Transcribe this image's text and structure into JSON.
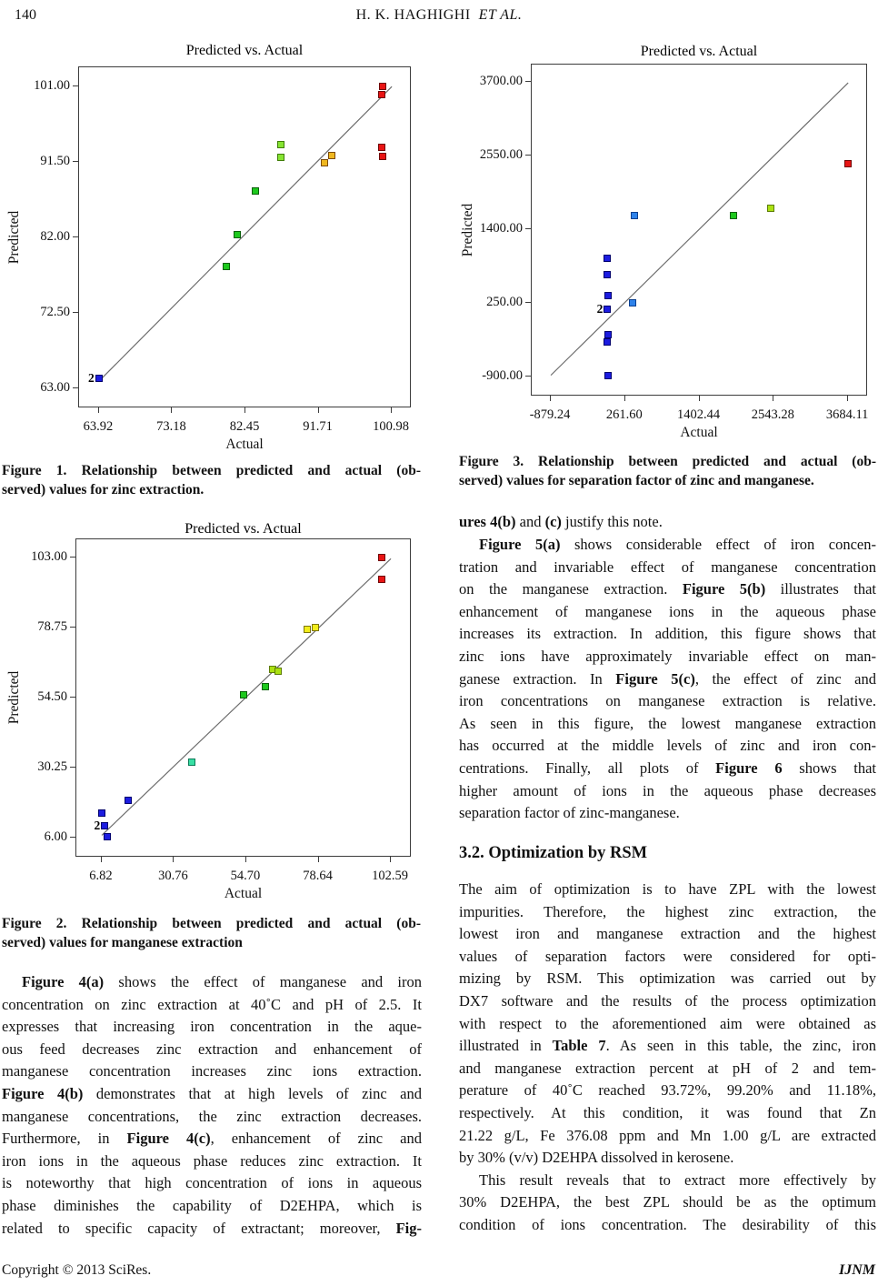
{
  "header": {
    "page_number": "140",
    "author": "H. K. HAGHIGHI",
    "etal": "ET AL."
  },
  "footer": {
    "copyright": "Copyright © 2013 SciRes.",
    "journal": "IJNM"
  },
  "palette": {
    "blue": [
      "#1c1ce0",
      "#00006e"
    ],
    "lightblue": [
      "#2e82ea",
      "#0b3f8f"
    ],
    "cyan": [
      "#38dfa4",
      "#0c7a58"
    ],
    "green": [
      "#1dc81d",
      "#075f07"
    ],
    "lightgreen": [
      "#86e432",
      "#3f7d08"
    ],
    "yellowgreen": [
      "#abe112",
      "#5d7c08"
    ],
    "yellow": [
      "#f2ed1c",
      "#7c7508"
    ],
    "orange": [
      "#efb71f",
      "#7c4a08"
    ],
    "red": [
      "#e81414",
      "#6e0505"
    ]
  },
  "chart_data": [
    {
      "type": "scatter",
      "title": "Predicted vs. Actual",
      "xlabel": "Actual",
      "ylabel": "Predicted",
      "xlim": [
        61.4,
        103.5
      ],
      "ylim": [
        60.5,
        103.4
      ],
      "grid": false,
      "xticks": [
        {
          "v": 63.92,
          "t": "63.92"
        },
        {
          "v": 73.18,
          "t": "73.18"
        },
        {
          "v": 82.45,
          "t": "82.45"
        },
        {
          "v": 91.71,
          "t": "91.71"
        },
        {
          "v": 100.98,
          "t": "100.98"
        }
      ],
      "yticks": [
        {
          "v": 63.0,
          "t": "63.00"
        },
        {
          "v": 72.5,
          "t": "72.50"
        },
        {
          "v": 82.0,
          "t": "82.00"
        },
        {
          "v": 91.5,
          "t": "91.50"
        },
        {
          "v": 101.0,
          "t": "101.00"
        }
      ],
      "line": {
        "x1": 63.92,
        "y1": 63.92,
        "x2": 100.98,
        "y2": 100.98
      },
      "points": [
        {
          "x": 63.9,
          "y": 64.3,
          "c": "blue",
          "t": "2"
        },
        {
          "x": 80.0,
          "y": 78.4,
          "c": "green"
        },
        {
          "x": 81.4,
          "y": 82.4,
          "c": "green"
        },
        {
          "x": 83.7,
          "y": 87.8,
          "c": "green"
        },
        {
          "x": 86.9,
          "y": 93.7,
          "c": "lightgreen"
        },
        {
          "x": 86.9,
          "y": 92.1,
          "c": "lightgreen"
        },
        {
          "x": 92.4,
          "y": 91.4,
          "c": "orange"
        },
        {
          "x": 93.4,
          "y": 92.3,
          "c": "orange"
        },
        {
          "x": 99.8,
          "y": 101.0,
          "c": "red"
        },
        {
          "x": 99.7,
          "y": 100.0,
          "c": "red"
        },
        {
          "x": 99.7,
          "y": 93.3,
          "c": "red"
        },
        {
          "x": 99.8,
          "y": 92.2,
          "c": "red"
        }
      ]
    },
    {
      "type": "scatter",
      "title": "Predicted vs. Actual",
      "xlabel": "Actual",
      "ylabel": "Predicted",
      "xlim": [
        -1.6,
        109.5
      ],
      "ylim": [
        -0.9,
        109.3
      ],
      "grid": false,
      "xticks": [
        {
          "v": 6.82,
          "t": "6.82"
        },
        {
          "v": 30.76,
          "t": "30.76"
        },
        {
          "v": 54.7,
          "t": "54.70"
        },
        {
          "v": 78.64,
          "t": "78.64"
        },
        {
          "v": 102.59,
          "t": "102.59"
        }
      ],
      "yticks": [
        {
          "v": 6.0,
          "t": "6.00"
        },
        {
          "v": 30.25,
          "t": "30.25"
        },
        {
          "v": 54.5,
          "t": "54.50"
        },
        {
          "v": 78.75,
          "t": "78.75"
        },
        {
          "v": 103.0,
          "t": "103.00"
        }
      ],
      "line": {
        "x1": 6.82,
        "y1": 6.82,
        "x2": 102.59,
        "y2": 102.59
      },
      "points": [
        {
          "x": 99.6,
          "y": 103.0,
          "c": "red"
        },
        {
          "x": 99.6,
          "y": 95.6,
          "c": "red"
        },
        {
          "x": 74.8,
          "y": 78.2,
          "c": "yellow"
        },
        {
          "x": 77.6,
          "y": 78.8,
          "c": "yellow"
        },
        {
          "x": 63.4,
          "y": 64.4,
          "c": "yellowgreen"
        },
        {
          "x": 65.2,
          "y": 63.7,
          "c": "yellowgreen"
        },
        {
          "x": 60.9,
          "y": 58.2,
          "c": "green"
        },
        {
          "x": 53.9,
          "y": 55.5,
          "c": "green"
        },
        {
          "x": 36.5,
          "y": 32.3,
          "c": "cyan"
        },
        {
          "x": 15.5,
          "y": 18.9,
          "c": "blue"
        },
        {
          "x": 6.8,
          "y": 14.4,
          "c": "blue"
        },
        {
          "x": 7.8,
          "y": 10.0,
          "c": "blue",
          "t": "2"
        },
        {
          "x": 8.5,
          "y": 6.2,
          "c": "blue"
        }
      ]
    },
    {
      "type": "scatter",
      "title": "Predicted vs. Actual",
      "xlabel": "Actual",
      "ylabel": "Predicted",
      "xlim": [
        -1173,
        3989
      ],
      "ylim": [
        -1211,
        3969
      ],
      "grid": false,
      "xticks": [
        {
          "v": -879.24,
          "t": "-879.24"
        },
        {
          "v": 261.6,
          "t": "261.60"
        },
        {
          "v": 1402.44,
          "t": "1402.44"
        },
        {
          "v": 2543.28,
          "t": "2543.28"
        },
        {
          "v": 3684.11,
          "t": "3684.11"
        }
      ],
      "yticks": [
        {
          "v": -900.0,
          "t": "-900.00"
        },
        {
          "v": 250.0,
          "t": "250.00"
        },
        {
          "v": 1400.0,
          "t": "1400.00"
        },
        {
          "v": 2550.0,
          "t": "2550.00"
        },
        {
          "v": 3700.0,
          "t": "3700.00"
        }
      ],
      "line": {
        "x1": -879.24,
        "y1": -879.24,
        "x2": 3684.11,
        "y2": 3684.11
      },
      "points": [
        {
          "x": 3680,
          "y": 2420,
          "c": "red"
        },
        {
          "x": 2490,
          "y": 1730,
          "c": "yellowgreen"
        },
        {
          "x": 1920,
          "y": 1610,
          "c": "green"
        },
        {
          "x": 400,
          "y": 1620,
          "c": "lightblue"
        },
        {
          "x": 380,
          "y": 250,
          "c": "lightblue"
        },
        {
          "x": -10,
          "y": 950,
          "c": "blue"
        },
        {
          "x": -10,
          "y": 690,
          "c": "blue"
        },
        {
          "x": 0,
          "y": 360,
          "c": "blue"
        },
        {
          "x": -10,
          "y": 150,
          "c": "blue",
          "t": "2"
        },
        {
          "x": -5,
          "y": -240,
          "c": "blue"
        },
        {
          "x": -10,
          "y": -360,
          "c": "blue"
        },
        {
          "x": -5,
          "y": -880,
          "c": "blue"
        }
      ]
    }
  ],
  "captions": {
    "fig1": [
      {
        "s": [
          [
            0,
            "Figure 1. Relationship between predicted and actual (ob-"
          ]
        ]
      },
      {
        "s": [
          [
            0,
            "served) values for zinc extraction."
          ]
        ],
        "l": 1
      }
    ],
    "fig2": [
      {
        "s": [
          [
            0,
            "Figure 2. Relationship between predicted and actual (ob-"
          ]
        ]
      },
      {
        "s": [
          [
            0,
            "served) values for manganese extraction"
          ]
        ],
        "l": 1
      }
    ],
    "fig3": [
      {
        "s": [
          [
            0,
            "Figure 3. Relationship between predicted and actual (ob-"
          ]
        ]
      },
      {
        "s": [
          [
            0,
            "served) values for separation factor of zinc and manganese."
          ]
        ],
        "l": 1
      }
    ]
  },
  "left_text": {
    "para1": [
      {
        "s": [
          [
            1,
            "Figure 4(a)"
          ],
          [
            0,
            " shows the effect of manganese and iron"
          ]
        ],
        "i": 1
      },
      {
        "s": [
          [
            0,
            "concentration on zinc extraction at 40˚C and pH of 2.5. It"
          ]
        ]
      },
      {
        "s": [
          [
            0,
            "expresses that increasing iron concentration in the aque-"
          ]
        ]
      },
      {
        "s": [
          [
            0,
            "ous feed decreases zinc extraction and enhancement of"
          ]
        ]
      },
      {
        "s": [
          [
            0,
            "manganese concentration increases zinc ions extraction."
          ]
        ]
      },
      {
        "s": [
          [
            1,
            "Figure 4(b)"
          ],
          [
            0,
            " demonstrates that at high levels of zinc and"
          ]
        ]
      },
      {
        "s": [
          [
            0,
            "manganese concentrations, the zinc extraction decreases."
          ]
        ]
      },
      {
        "s": [
          [
            0,
            "Furthermore, in "
          ],
          [
            1,
            "Figure 4(c)"
          ],
          [
            0,
            ", enhancement of zinc and"
          ]
        ]
      },
      {
        "s": [
          [
            0,
            "iron ions in the aqueous phase reduces zinc extraction. It"
          ]
        ]
      },
      {
        "s": [
          [
            0,
            "is noteworthy that high concentration of ions in aqueous"
          ]
        ]
      },
      {
        "s": [
          [
            0,
            "phase diminishes the capability of D2EHPA, which is"
          ]
        ]
      },
      {
        "s": [
          [
            0,
            "related to specific capacity of extractant; moreover, "
          ],
          [
            1,
            "Fig-"
          ]
        ]
      }
    ]
  },
  "right_text": {
    "cont_line": [
      {
        "s": [
          [
            1,
            "ures 4(b)"
          ],
          [
            0,
            " and "
          ],
          [
            1,
            "(c)"
          ],
          [
            0,
            " justify this note."
          ]
        ],
        "l": 1
      }
    ],
    "para_fig5": [
      {
        "s": [
          [
            1,
            "Figure 5(a)"
          ],
          [
            0,
            " shows considerable effect of iron concen-"
          ]
        ],
        "i": 1
      },
      {
        "s": [
          [
            0,
            "tration and invariable effect of manganese concentration"
          ]
        ]
      },
      {
        "s": [
          [
            0,
            "on the manganese extraction. "
          ],
          [
            1,
            "Figure 5(b)"
          ],
          [
            0,
            " illustrates that"
          ]
        ]
      },
      {
        "s": [
          [
            0,
            "enhancement of manganese ions in the aqueous phase"
          ]
        ]
      },
      {
        "s": [
          [
            0,
            "increases its extraction. In addition, this figure shows that"
          ]
        ]
      },
      {
        "s": [
          [
            0,
            "zinc ions have approximately invariable effect on man-"
          ]
        ]
      },
      {
        "s": [
          [
            0,
            "ganese extraction. In "
          ],
          [
            1,
            "Figure 5(c)"
          ],
          [
            0,
            ", the effect of zinc and"
          ]
        ]
      },
      {
        "s": [
          [
            0,
            "iron concentrations on manganese extraction is relative."
          ]
        ]
      },
      {
        "s": [
          [
            0,
            "As seen in this figure, the lowest manganese extraction"
          ]
        ]
      },
      {
        "s": [
          [
            0,
            "has occurred at the middle levels of zinc and iron con-"
          ]
        ]
      },
      {
        "s": [
          [
            0,
            "centrations. Finally, all plots of "
          ],
          [
            1,
            "Figure 6"
          ],
          [
            0,
            " shows that"
          ]
        ]
      },
      {
        "s": [
          [
            0,
            "higher amount of ions in the aqueous phase decreases"
          ]
        ]
      },
      {
        "s": [
          [
            0,
            "separation factor of zinc-manganese."
          ]
        ],
        "l": 1
      }
    ],
    "heading": "3.2. Optimization by RSM",
    "para_opt": [
      {
        "s": [
          [
            0,
            "The aim of optimization is to have ZPL with the lowest"
          ]
        ]
      },
      {
        "s": [
          [
            0,
            "impurities. Therefore, the highest zinc extraction, the"
          ]
        ]
      },
      {
        "s": [
          [
            0,
            "lowest iron and manganese extraction and the highest"
          ]
        ]
      },
      {
        "s": [
          [
            0,
            "values of separation factors were considered for opti-"
          ]
        ]
      },
      {
        "s": [
          [
            0,
            "mizing by RSM. This optimization was carried out by"
          ]
        ]
      },
      {
        "s": [
          [
            0,
            "DX7 software and the results of the process optimization"
          ]
        ]
      },
      {
        "s": [
          [
            0,
            "with respect to the aforementioned aim were obtained as"
          ]
        ]
      },
      {
        "s": [
          [
            0,
            "illustrated in "
          ],
          [
            1,
            "Table 7"
          ],
          [
            0,
            ". As seen in this table, the zinc, iron"
          ]
        ]
      },
      {
        "s": [
          [
            0,
            "and manganese extraction percent at pH of 2 and tem-"
          ]
        ]
      },
      {
        "s": [
          [
            0,
            "perature of 40˚C reached 93.72%, 99.20% and 11.18%,"
          ]
        ]
      },
      {
        "s": [
          [
            0,
            "respectively. At this condition, it was found that Zn"
          ]
        ]
      },
      {
        "s": [
          [
            0,
            "21.22 g/L, Fe 376.08 ppm and Mn 1.00 g/L are extracted"
          ]
        ]
      },
      {
        "s": [
          [
            0,
            "by 30% (v/v) D2EHPA dissolved in kerosene."
          ]
        ],
        "l": 1
      },
      {
        "s": [
          [
            0,
            "This result reveals that to extract more effectively by"
          ]
        ],
        "i": 1
      },
      {
        "s": [
          [
            0,
            "30% D2EHPA, the best ZPL should be as the optimum"
          ]
        ]
      },
      {
        "s": [
          [
            0,
            "condition of ions concentration. The desirability of this"
          ]
        ]
      }
    ]
  }
}
